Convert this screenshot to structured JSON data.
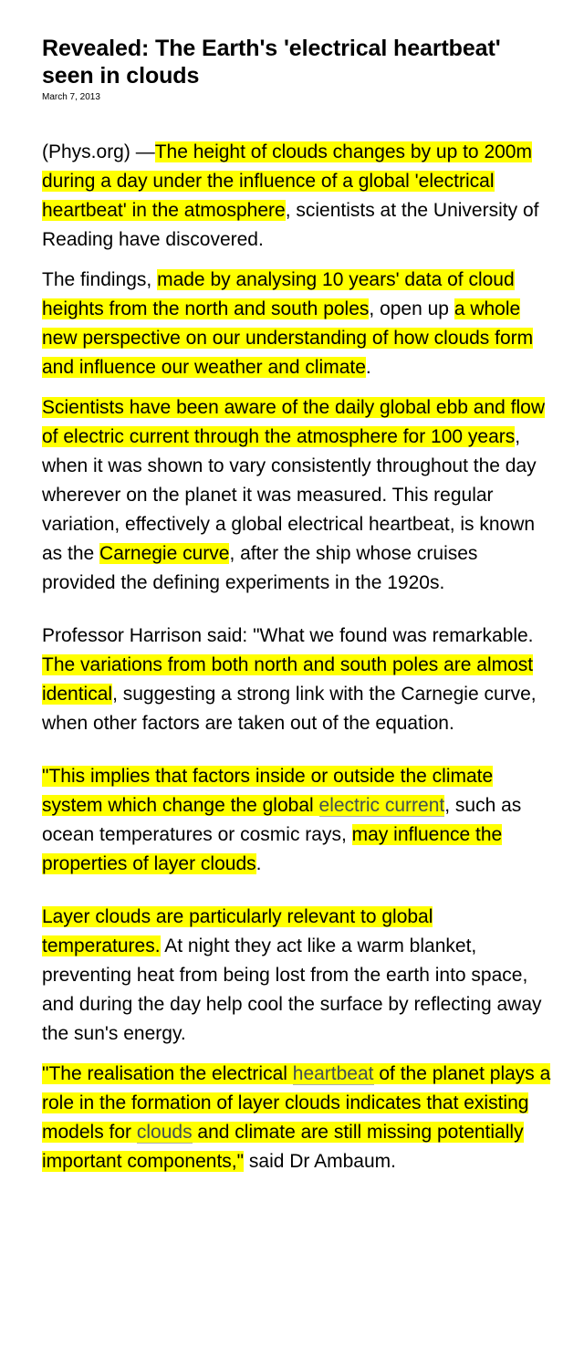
{
  "article": {
    "title": "Revealed: The Earth's 'electrical heartbeat' seen in clouds",
    "date": "March 7, 2013"
  },
  "p1": {
    "a": "(Phys.org) —",
    "b": "The height of clouds changes by up to 200m during a day under the influence of a global 'electrical heartbeat' in the atmosphere",
    "c": ", scientists at the University of Reading have discovered."
  },
  "p2": {
    "a": "The findings, ",
    "b": "made by analysing 10 years' data of cloud heights from the north and south poles",
    "c": ", open up ",
    "d": "a whole new perspective on our understanding of how clouds form and influence our weather and climate",
    "e": "."
  },
  "p3": {
    "a": "Scientists have been aware of the daily global ebb and flow of electric current through the atmosphere for 100 years",
    "b": ", when it was shown to vary consistently throughout the day wherever on the planet it was measured. This regular variation, effectively a global electrical heartbeat, is known as the ",
    "c": "Carnegie curve",
    "d": ", after the ship whose cruises provided the defining experiments in the 1920s."
  },
  "p4": {
    "a": "Professor Harrison said: \"What we found was remarkable. ",
    "b": "The variations from both north and south poles are almost identical",
    "c": ", suggesting a strong link with the Carnegie curve, when other factors are taken out of the equation."
  },
  "p5": {
    "a": "\"This implies that factors inside or outside the climate system which change the global ",
    "link": "electric current",
    "b": ", such as ocean temperatures or cosmic rays, ",
    "c": "may influence the properties of layer clouds",
    "d": "."
  },
  "p6": {
    "a": "Layer clouds are particularly relevant to global temperatures.",
    "b": " At night they act like a warm blanket, preventing heat from being lost from the earth into space, and during the day help cool the surface by reflecting away the sun's energy."
  },
  "p7": {
    "a": "\"The realisation the electrical ",
    "link1": "heartbeat",
    "b": " of the planet plays a role in the formation of layer clouds indicates that existing models for ",
    "link2": "clouds",
    "c": " and climate are still missing potentially important components,\"",
    "d": " said Dr Ambaum."
  },
  "colors": {
    "highlight": "#ffff00",
    "link": "#3f4d55"
  }
}
